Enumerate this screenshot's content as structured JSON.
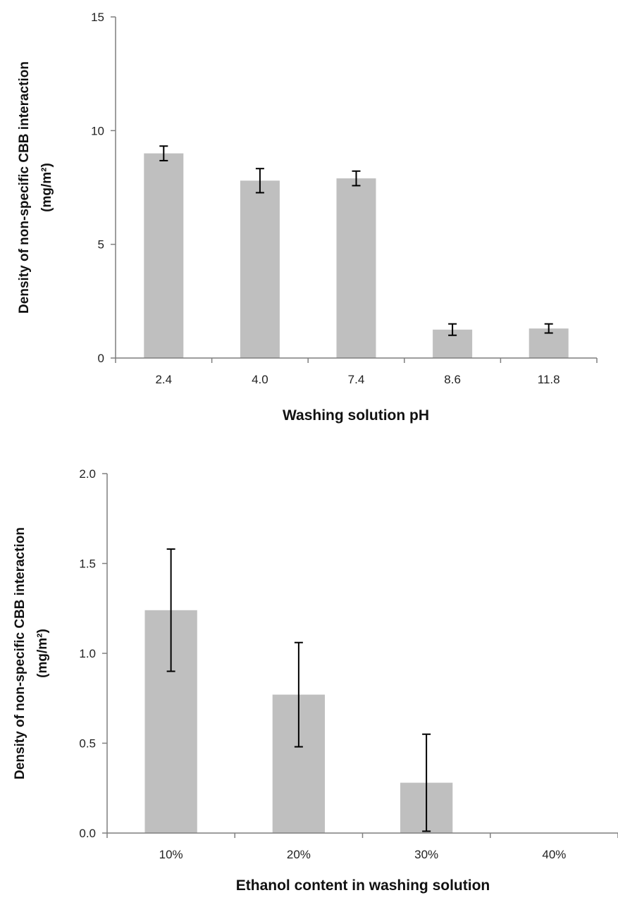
{
  "chart_data": [
    {
      "type": "bar",
      "categories": [
        "2.4",
        "4.0",
        "7.4",
        "8.6",
        "11.8"
      ],
      "values": [
        9.0,
        7.8,
        7.9,
        1.25,
        1.3
      ],
      "errors": [
        0.32,
        0.53,
        0.32,
        0.25,
        0.2
      ],
      "xlabel": "Washing solution pH",
      "ylabel_line1": "Density of non-specific CBB interaction",
      "ylabel_line2": "(mg/m²)",
      "ylim": [
        0,
        15
      ],
      "yticks": [
        0,
        5,
        10,
        15
      ],
      "ytick_labels": [
        "0",
        "5",
        "10",
        "15"
      ],
      "bar_color": "#bfbfbf",
      "grid": false,
      "legend": "none"
    },
    {
      "type": "bar",
      "categories": [
        "10%",
        "20%",
        "30%",
        "40%"
      ],
      "values": [
        1.24,
        0.77,
        0.28,
        0.0
      ],
      "errors": [
        0.34,
        0.29,
        0.27,
        0.0
      ],
      "xlabel": "Ethanol content in washing solution",
      "ylabel_line1": "Density of non-specific CBB interaction",
      "ylabel_line2": "(mg/m²)",
      "ylim": [
        0,
        2.0
      ],
      "yticks": [
        0,
        0.5,
        1.0,
        1.5,
        2.0
      ],
      "ytick_labels": [
        "0.0",
        "0.5",
        "1.0",
        "1.5",
        "2.0"
      ],
      "bar_color": "#bfbfbf",
      "grid": false,
      "legend": "none"
    }
  ]
}
